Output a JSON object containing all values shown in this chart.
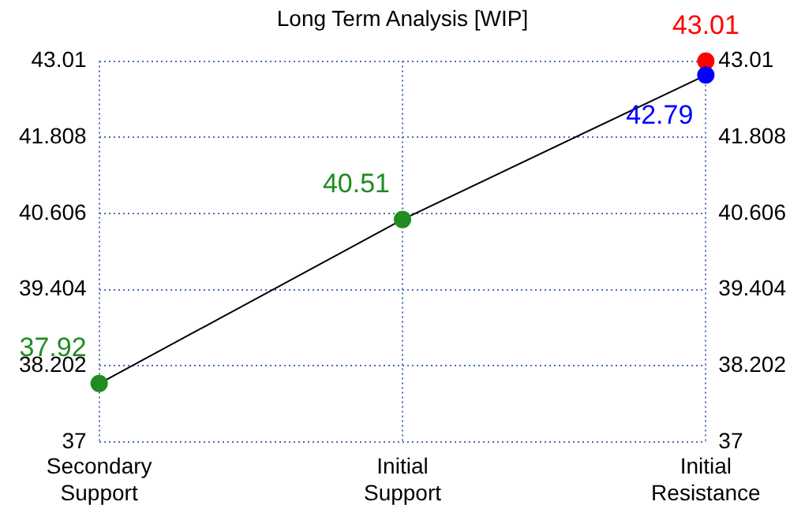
{
  "chart_data": {
    "type": "line",
    "title": "Long Term Analysis [WIP]",
    "categories": [
      "Secondary\nSupport",
      "Initial\nSupport",
      "Initial\nResistance"
    ],
    "series": [
      {
        "type": "line",
        "color": "#000000",
        "colors": [
          "#228b22",
          "#228b22",
          "#0000ff"
        ],
        "values": [
          37.92,
          40.51,
          42.79
        ]
      },
      {
        "type": "scatter",
        "color": "#ff0000",
        "values": [
          null,
          null,
          43.01
        ]
      }
    ],
    "ylim": [
      37,
      43.01
    ],
    "yticks": [
      37,
      38.202,
      39.404,
      40.606,
      41.808,
      43.01
    ],
    "y2lim": [
      37,
      43.01
    ],
    "y2ticks": [
      37,
      38.202,
      39.404,
      40.606,
      41.808,
      43.01
    ],
    "grid": true,
    "legend": false,
    "marker": "circle",
    "data_labels": true
  }
}
